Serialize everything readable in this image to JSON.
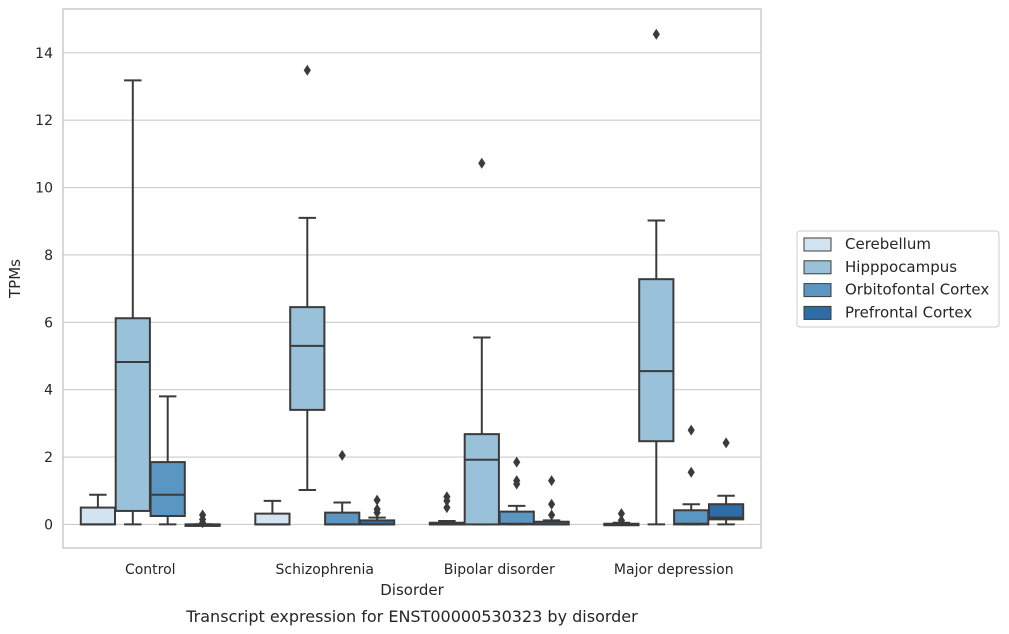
{
  "caption": "Transcript expression for ENST00000530323 by disorder",
  "chart_data": {
    "type": "boxplot",
    "xlabel": "Disorder",
    "ylabel": "TPMs",
    "ylim": [
      -0.7,
      15.3
    ],
    "yticks": [
      0,
      2,
      4,
      6,
      8,
      10,
      12,
      14
    ],
    "grid": "horizontal",
    "legend_position": "right",
    "categories": [
      "Control",
      "Schizophrenia",
      "Bipolar disorder",
      "Major depression"
    ],
    "series": [
      {
        "name": "Cerebellum",
        "color": "#d4e3f1",
        "boxes": [
          {
            "whislo": 0,
            "q1": 0,
            "median": 0,
            "q3": 0.5,
            "whishi": 0.88,
            "fliers": []
          },
          {
            "whislo": 0,
            "q1": 0,
            "median": 0,
            "q3": 0.32,
            "whishi": 0.7,
            "fliers": []
          },
          {
            "whislo": 0,
            "q1": 0,
            "median": 0,
            "q3": 0.05,
            "whishi": 0.1,
            "fliers": [
              0.5,
              0.7,
              0.82
            ]
          },
          {
            "whislo": 0,
            "q1": 0,
            "median": 0,
            "q3": 0.02,
            "whishi": 0.05,
            "fliers": [
              0.12,
              0.32
            ]
          }
        ]
      },
      {
        "name": "Hipppocampus",
        "color": "#9ac1da",
        "boxes": [
          {
            "whislo": 0,
            "q1": 0.4,
            "median": 4.82,
            "q3": 6.12,
            "whishi": 13.18,
            "fliers": []
          },
          {
            "whislo": 1.02,
            "q1": 3.4,
            "median": 5.3,
            "q3": 6.45,
            "whishi": 9.1,
            "fliers": [
              13.48
            ]
          },
          {
            "whislo": 0,
            "q1": 0,
            "median": 1.92,
            "q3": 2.68,
            "whishi": 5.55,
            "fliers": [
              10.72
            ]
          },
          {
            "whislo": 0,
            "q1": 2.47,
            "median": 4.55,
            "q3": 7.28,
            "whishi": 9.02,
            "fliers": [
              14.55
            ]
          }
        ]
      },
      {
        "name": "Orbitofontal Cortex",
        "color": "#5b96c2",
        "boxes": [
          {
            "whislo": 0,
            "q1": 0.25,
            "median": 0.88,
            "q3": 1.85,
            "whishi": 3.8,
            "fliers": []
          },
          {
            "whislo": 0,
            "q1": 0,
            "median": 0,
            "q3": 0.35,
            "whishi": 0.65,
            "fliers": [
              2.05
            ]
          },
          {
            "whislo": 0,
            "q1": 0,
            "median": 0.02,
            "q3": 0.38,
            "whishi": 0.55,
            "fliers": [
              1.2,
              1.3,
              1.85
            ]
          },
          {
            "whislo": 0,
            "q1": 0,
            "median": 0.02,
            "q3": 0.42,
            "whishi": 0.6,
            "fliers": [
              1.55,
              2.8
            ]
          }
        ]
      },
      {
        "name": "Prefrontal Cortex",
        "color": "#2e6ca8",
        "boxes": [
          {
            "whislo": 0,
            "q1": 0,
            "median": 0,
            "q3": 0,
            "whishi": 0,
            "fliers": [
              0.05,
              0.15,
              0.28
            ]
          },
          {
            "whislo": 0,
            "q1": 0,
            "median": 0,
            "q3": 0.12,
            "whishi": 0.2,
            "fliers": [
              0.35,
              0.45,
              0.72
            ]
          },
          {
            "whislo": 0,
            "q1": 0,
            "median": 0,
            "q3": 0.08,
            "whishi": 0.12,
            "fliers": [
              0.28,
              0.6,
              1.3
            ]
          },
          {
            "whislo": 0,
            "q1": 0.15,
            "median": 0.2,
            "q3": 0.6,
            "whishi": 0.85,
            "fliers": [
              2.42
            ]
          }
        ]
      }
    ]
  }
}
